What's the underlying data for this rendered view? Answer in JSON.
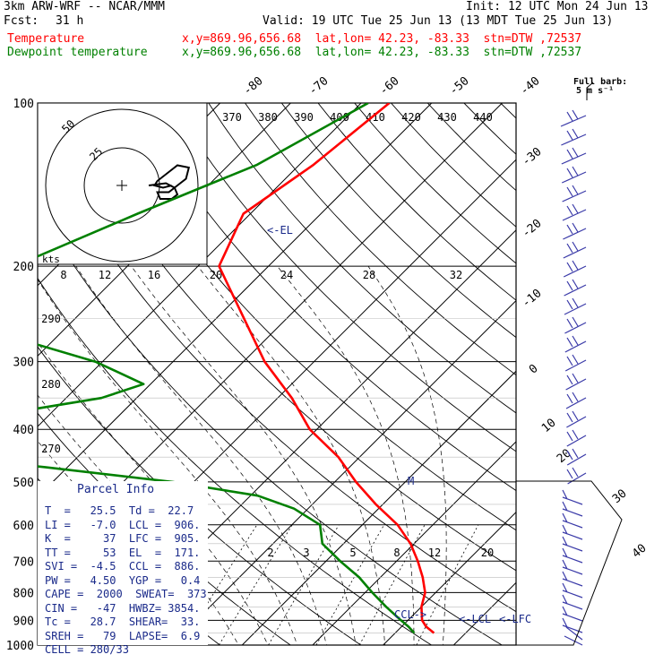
{
  "header": {
    "model": "3km ARW-WRF -- NCAR/MMM",
    "init": "Init: 12 UTC Mon 24 Jun 13",
    "fcst_label": "Fcst:",
    "fcst_value": "31 h",
    "valid": "Valid: 19 UTC Tue 25 Jun 13 (13 MDT Tue 25 Jun 13)",
    "temp_label": "Temperature",
    "temp_info": "x,y=869.96,656.68  lat,lon= 42.23, -83.33  stn=DTW ,72537",
    "dew_label": "Dewpoint temperature",
    "dew_info": "x,y=869.96,656.68  lat,lon= 42.23, -83.33  stn=DTW ,72537"
  },
  "colors": {
    "temperature": "#ff0000",
    "dewpoint": "#008000",
    "info_text": "#1a2a8a",
    "barbs": "#3a3aa8"
  },
  "chart_data": {
    "type": "skew-t",
    "pressure_ticks": [
      100,
      200,
      300,
      400,
      500,
      600,
      700,
      800,
      900,
      1000
    ],
    "isotherm_labels": [
      -80,
      -70,
      -60,
      -50,
      -40,
      -30,
      -20,
      -10,
      0,
      10,
      20,
      30,
      40
    ],
    "theta_labels": [
      370,
      380,
      390,
      400,
      410,
      420,
      430,
      440
    ],
    "theta_left_labels": [
      290,
      280,
      270
    ],
    "mixing_ratio_labels": [
      2,
      3,
      5,
      8,
      12,
      20
    ],
    "barb_legend": [
      "Full barb:",
      "5 m s⁻¹"
    ],
    "series": [
      {
        "name": "Temperature",
        "points": [
          [
            100,
            -56
          ],
          [
            130,
            -58
          ],
          [
            160,
            -61
          ],
          [
            200,
            -57
          ],
          [
            250,
            -46
          ],
          [
            300,
            -37
          ],
          [
            350,
            -28
          ],
          [
            400,
            -21
          ],
          [
            450,
            -13
          ],
          [
            500,
            -7
          ],
          [
            550,
            -1
          ],
          [
            600,
            5
          ],
          [
            650,
            9.5
          ],
          [
            700,
            13
          ],
          [
            750,
            16
          ],
          [
            800,
            18.5
          ],
          [
            850,
            20
          ],
          [
            900,
            22
          ],
          [
            925,
            23.5
          ],
          [
            950,
            25.5
          ]
        ]
      },
      {
        "name": "Dewpoint temperature",
        "points": [
          [
            100,
            -59
          ],
          [
            130,
            -66
          ],
          [
            160,
            -76
          ],
          [
            200,
            -86
          ],
          [
            230,
            -86
          ],
          [
            260,
            -82
          ],
          [
            300,
            -61
          ],
          [
            330,
            -51
          ],
          [
            350,
            -55
          ],
          [
            380,
            -69
          ],
          [
            420,
            -92
          ],
          [
            470,
            -53
          ],
          [
            500,
            -33
          ],
          [
            530,
            -19
          ],
          [
            560,
            -12
          ],
          [
            600,
            -6
          ],
          [
            650,
            -3
          ],
          [
            700,
            2
          ],
          [
            750,
            7
          ],
          [
            800,
            11
          ],
          [
            850,
            15
          ],
          [
            900,
            19
          ],
          [
            925,
            21
          ],
          [
            950,
            22.7
          ]
        ]
      }
    ],
    "annotations": [
      "<-EL",
      "M",
      "CCL->",
      "<-LCL",
      "<-LFC"
    ],
    "hodograph": {
      "unit_label": "kts",
      "ring_labels": [
        "50",
        "25"
      ],
      "wind_scale_labels": [
        8,
        12,
        16,
        20,
        24,
        28,
        32
      ],
      "trace": [
        [
          0,
          0
        ],
        [
          6,
          -1
        ],
        [
          9,
          1
        ],
        [
          10,
          4
        ],
        [
          8,
          6
        ],
        [
          4,
          6
        ],
        [
          3,
          3
        ],
        [
          7,
          3
        ],
        [
          11,
          -1
        ],
        [
          13,
          -3
        ],
        [
          14,
          -8
        ],
        [
          10,
          -9
        ],
        [
          7,
          -6
        ],
        [
          3,
          -2
        ],
        [
          2,
          0
        ],
        [
          5,
          1
        ],
        [
          8,
          0
        ]
      ]
    },
    "barb_counts": [
      20,
      12
    ]
  },
  "parcel_info": {
    "title": "Parcel Info",
    "rows": [
      "T  =   25.5  Td =  22.7",
      "LI =   -7.0  LCL =  906.",
      "K  =     37  LFC =  905.",
      "TT =     53  EL  =  171.",
      "SVI =  -4.5  CCL =  886.",
      "PW =   4.50  YGP =   0.4",
      "CAPE =  2000  SWEAT=  373",
      "CIN =   -47  HWBZ= 3854.",
      "Tc =   28.7  SHEAR=  33.",
      "SREH =   79  LAPSE=  6.9",
      "CELL = 280/33"
    ]
  }
}
